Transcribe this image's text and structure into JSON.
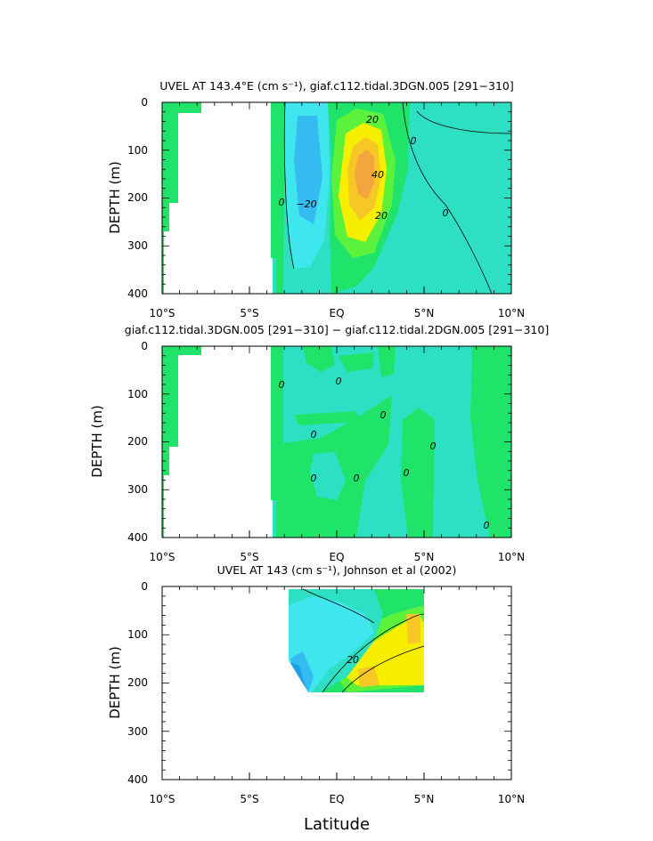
{
  "palette": {
    "neg40": "#1d9ee8",
    "neg20": "#34bcf0",
    "neg10": "#3fe6ee",
    "zero": "#2de0c3",
    "pos10": "#20e46a",
    "pos20": "#5cf23c",
    "pos30": "#f6f000",
    "pos40": "#f7c825",
    "pos50": "#f5a53d"
  },
  "chart_data": [
    {
      "type": "heatmap",
      "title": "UVEL AT 143.4°E (cm s⁻¹), giaf.c112.tidal.3DGN.005 [291−310]",
      "xlabel": "",
      "ylabel": "DEPTH (m)",
      "x_ticks": [
        "10°S",
        "5°S",
        "EQ",
        "5°N",
        "10°N"
      ],
      "y_ticks": [
        "0",
        "100",
        "200",
        "300",
        "400"
      ],
      "xlim": [
        -10,
        10
      ],
      "ylim": [
        0,
        400
      ],
      "contour_labels": [
        "20",
        "0",
        "−20",
        "0",
        "40",
        "20",
        "0"
      ]
    },
    {
      "type": "heatmap",
      "title": "giaf.c112.tidal.3DGN.005 [291−310] − giaf.c112.tidal.2DGN.005 [291−310]",
      "xlabel": "",
      "ylabel": "DEPTH (m)",
      "x_ticks": [
        "10°S",
        "5°S",
        "EQ",
        "5°N",
        "10°N"
      ],
      "y_ticks": [
        "0",
        "100",
        "200",
        "300",
        "400"
      ],
      "xlim": [
        -10,
        10
      ],
      "ylim": [
        0,
        400
      ],
      "contour_labels": [
        "0",
        "0",
        "0",
        "0",
        "0",
        "0",
        "0",
        "0",
        "0"
      ]
    },
    {
      "type": "heatmap",
      "title": "UVEL AT 143 (cm s⁻¹), Johnson et al (2002)",
      "xlabel": "Latitude",
      "ylabel": "DEPTH (m)",
      "x_ticks": [
        "10°S",
        "5°S",
        "EQ",
        "5°N",
        "10°N"
      ],
      "y_ticks": [
        "0",
        "100",
        "200",
        "300",
        "400"
      ],
      "xlim": [
        -10,
        10
      ],
      "ylim": [
        0,
        400
      ],
      "contour_labels": [
        "20"
      ]
    }
  ]
}
